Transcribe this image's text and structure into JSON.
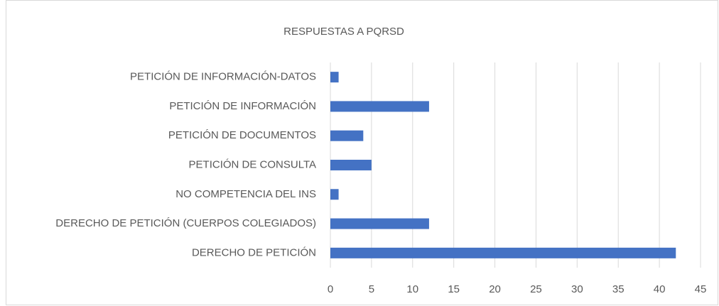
{
  "chart_data": {
    "type": "bar",
    "orientation": "horizontal",
    "title": "RESPUESTAS A PQRSD",
    "categories": [
      "PETICIÓN DE INFORMACIÓN-DATOS",
      "PETICIÓN DE INFORMACIÓN",
      "PETICIÓN DE DOCUMENTOS",
      "PETICIÓN DE CONSULTA",
      "NO COMPETENCIA DEL INS",
      "DERECHO DE PETICIÓN (CUERPOS COLEGIADOS)",
      "DERECHO DE PETICIÓN"
    ],
    "values": [
      1,
      12,
      4,
      5,
      1,
      12,
      42
    ],
    "color": "#4472c4",
    "xlim": [
      0,
      45
    ],
    "xticks": [
      0,
      5,
      10,
      15,
      20,
      25,
      30,
      35,
      40,
      45
    ],
    "grid": true
  }
}
